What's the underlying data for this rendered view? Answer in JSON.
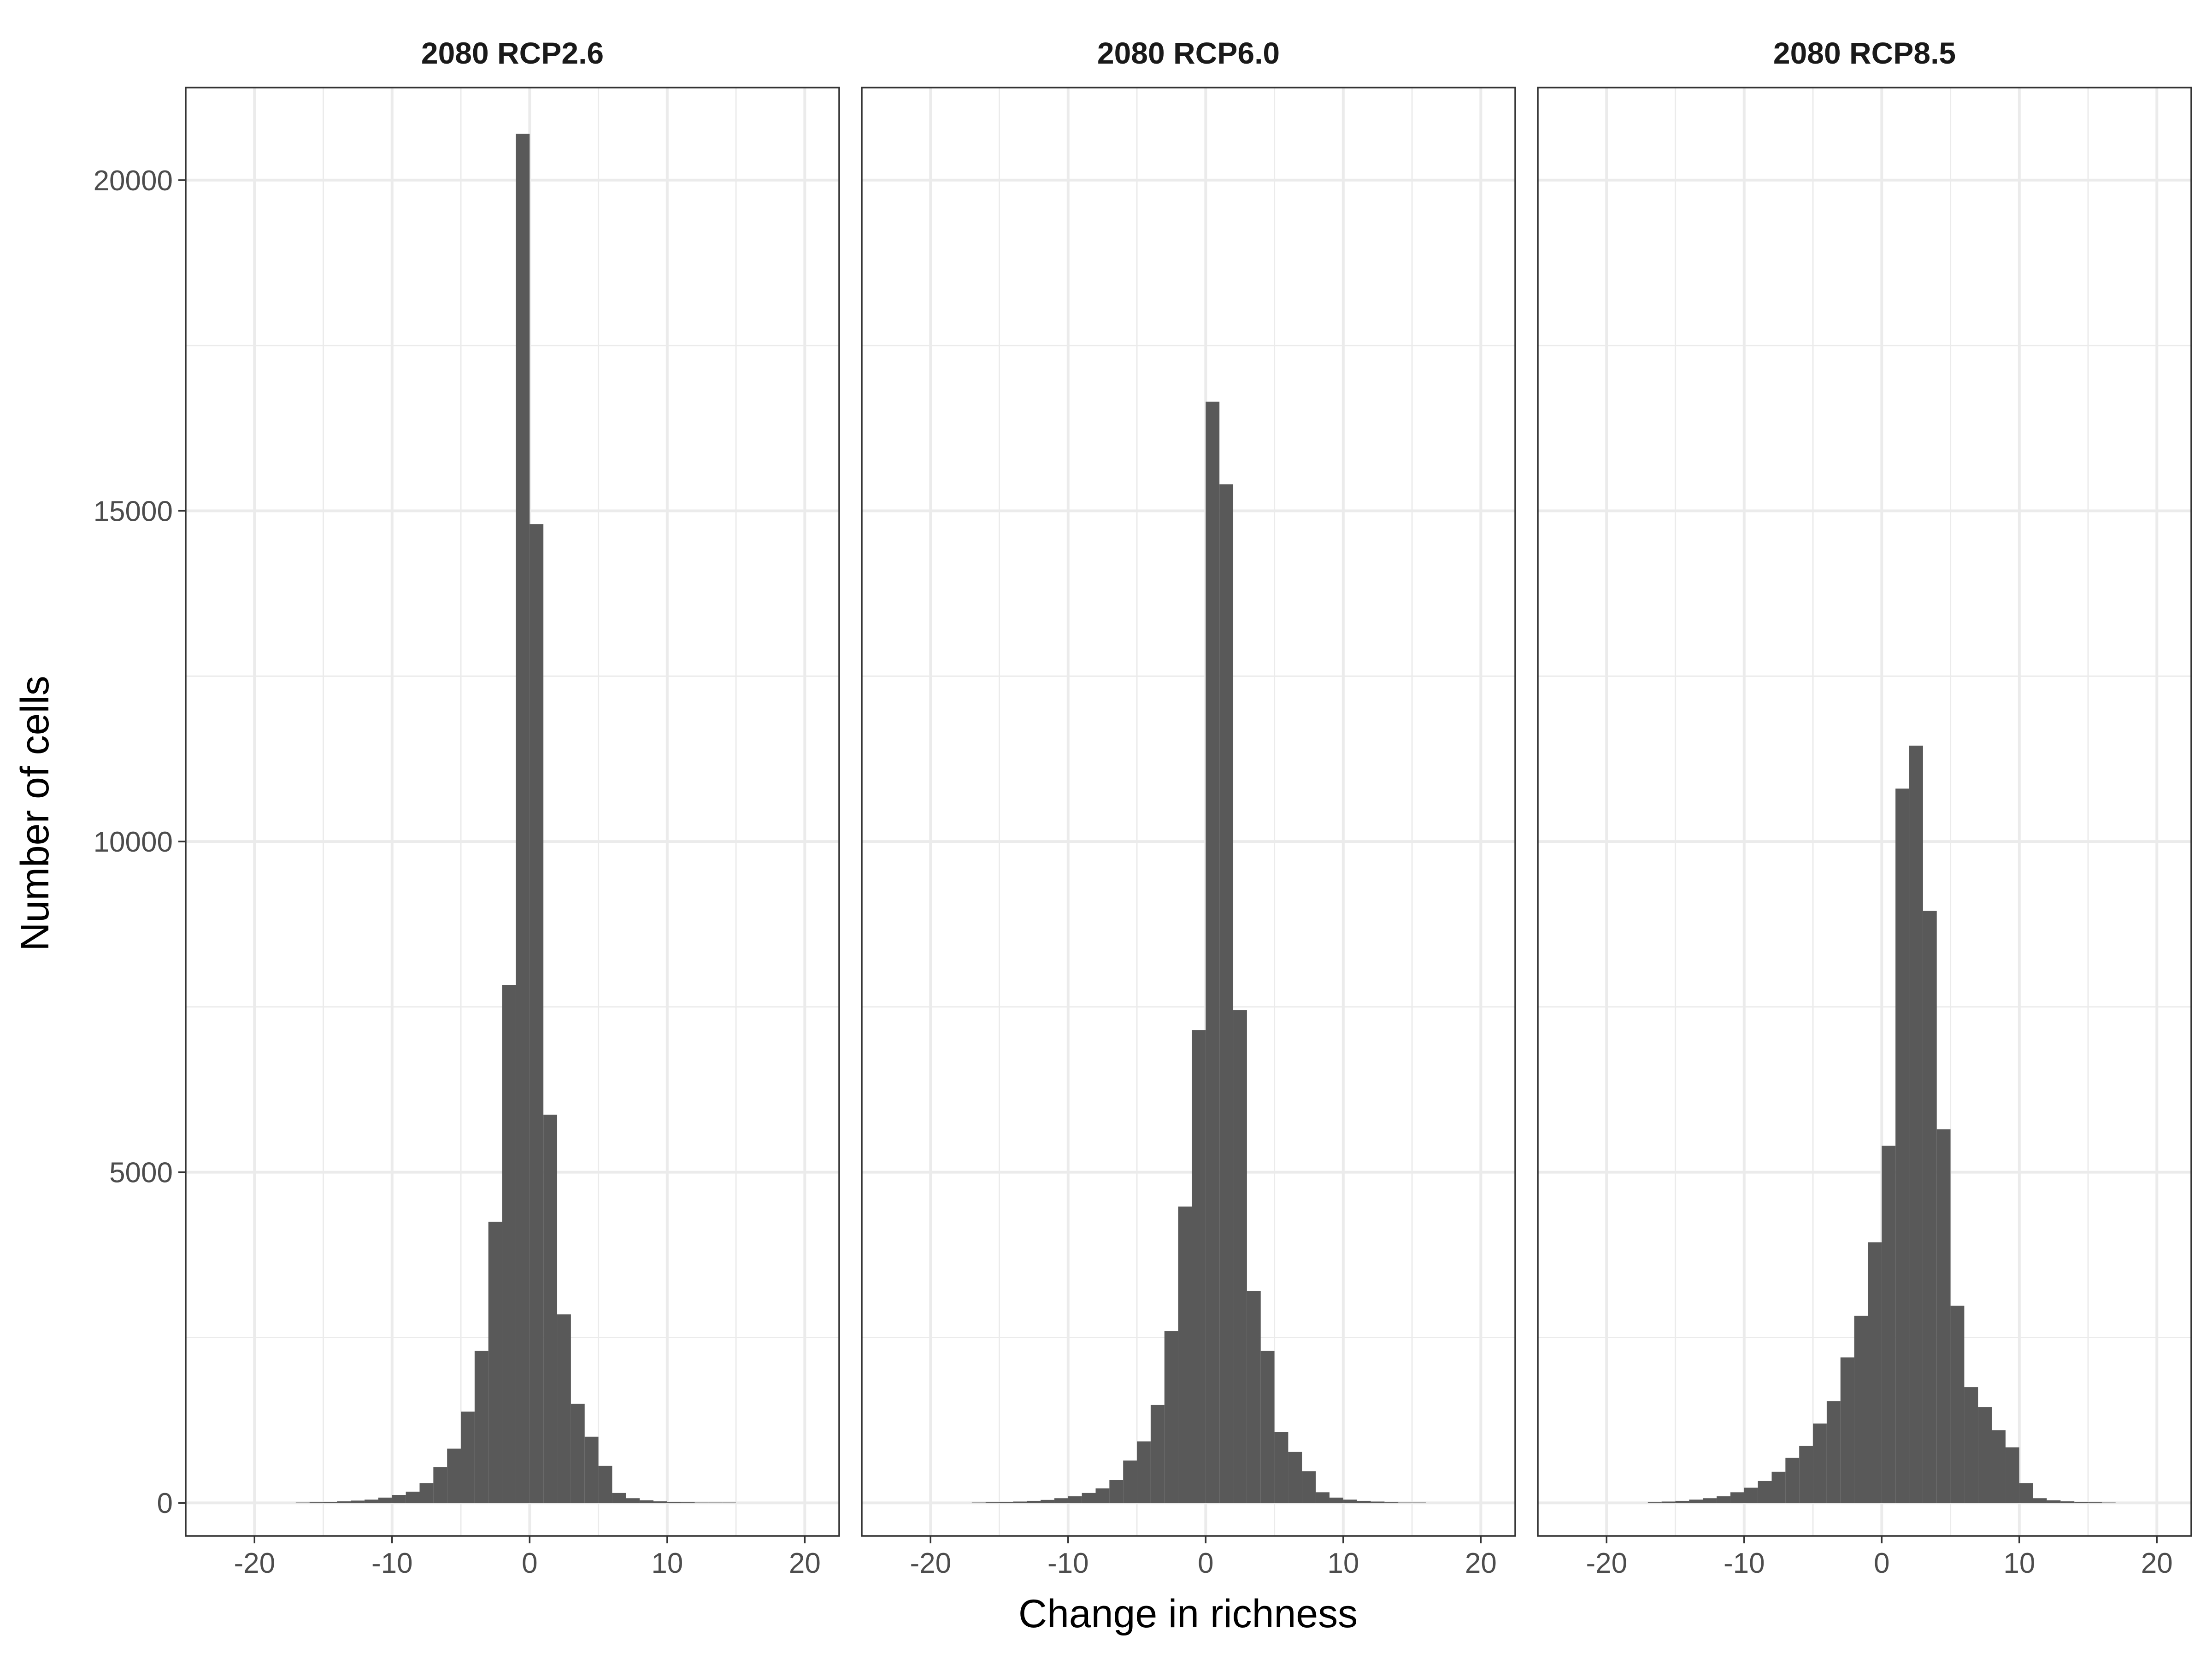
{
  "chart_data": {
    "type": "bar",
    "xlabel": "Change in richness",
    "ylabel": "Number of cells",
    "xlim": [
      -25,
      22.5
    ],
    "ylim": [
      -500,
      21400
    ],
    "x_ticks": [
      "-20",
      "-10",
      "0",
      "10",
      "20"
    ],
    "y_ticks": [
      "0",
      "5000",
      "10000",
      "15000",
      "20000"
    ],
    "bin_width": 1,
    "bin_starts": [
      -21,
      -20,
      -19,
      -18,
      -17,
      -16,
      -15,
      -14,
      -13,
      -12,
      -11,
      -10,
      -9,
      -8,
      -7,
      -6,
      -5,
      -4,
      -3,
      -2,
      -1,
      0,
      1,
      2,
      3,
      4,
      5,
      6,
      7,
      8,
      9,
      10,
      11,
      12,
      13,
      14,
      15,
      16,
      17,
      18,
      19,
      20
    ],
    "grid": true,
    "colors": {
      "bar": "#595959",
      "grid": "#ebebeb",
      "panel_border": "#333333",
      "strip_text": "#1a1a1a"
    },
    "panels": [
      {
        "title": "2080 RCP2.6",
        "values": [
          0,
          0,
          0,
          0,
          5,
          10,
          15,
          25,
          35,
          50,
          80,
          120,
          170,
          300,
          540,
          820,
          1380,
          2300,
          4250,
          7830,
          20700,
          14800,
          5870,
          2850,
          1500,
          1000,
          560,
          150,
          70,
          40,
          25,
          15,
          10,
          5,
          5,
          5,
          0,
          0,
          0,
          0,
          0,
          0
        ]
      },
      {
        "title": "2080 RCP6.0",
        "values": [
          0,
          0,
          0,
          0,
          5,
          10,
          15,
          20,
          30,
          45,
          70,
          100,
          150,
          220,
          350,
          640,
          930,
          1480,
          2600,
          4480,
          7150,
          16650,
          15400,
          7450,
          3200,
          2300,
          1070,
          770,
          480,
          160,
          80,
          50,
          30,
          20,
          10,
          5,
          5,
          0,
          0,
          0,
          0,
          0
        ]
      },
      {
        "title": "2080 RCP8.5",
        "values": [
          0,
          0,
          0,
          0,
          10,
          20,
          30,
          50,
          70,
          100,
          160,
          230,
          330,
          470,
          680,
          860,
          1200,
          1540,
          2200,
          2830,
          3940,
          5400,
          10800,
          11450,
          8950,
          5650,
          2980,
          1750,
          1450,
          1100,
          840,
          300,
          70,
          40,
          25,
          15,
          10,
          5,
          0,
          0,
          0,
          0
        ]
      }
    ]
  }
}
